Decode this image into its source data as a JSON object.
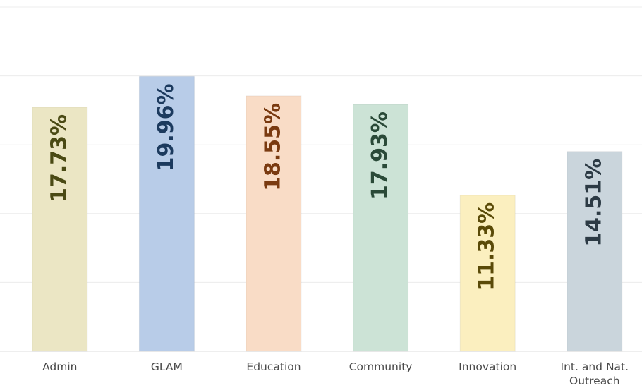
{
  "chart_data": {
    "type": "bar",
    "categories": [
      "Admin",
      "GLAM",
      "Education",
      "Community",
      "Innovation",
      "Int. and Nat. Outreach"
    ],
    "values": [
      17.73,
      19.96,
      18.55,
      17.93,
      11.33,
      14.51
    ],
    "value_labels": [
      "17.73%",
      "19.96%",
      "18.55%",
      "17.93%",
      "11.33%",
      "14.51%"
    ],
    "colors": [
      "#ebe6c4",
      "#b8cce8",
      "#f9dcc6",
      "#cce3d6",
      "#fbefbf",
      "#cad5dc"
    ],
    "label_colors": [
      "#4a4a14",
      "#1c3a5e",
      "#7a3a10",
      "#2a4a38",
      "#5a4a08",
      "#2c3a44"
    ],
    "ylim": [
      0,
      25
    ],
    "yticks": [
      0,
      5,
      10,
      15,
      20,
      25
    ],
    "grid": true
  }
}
